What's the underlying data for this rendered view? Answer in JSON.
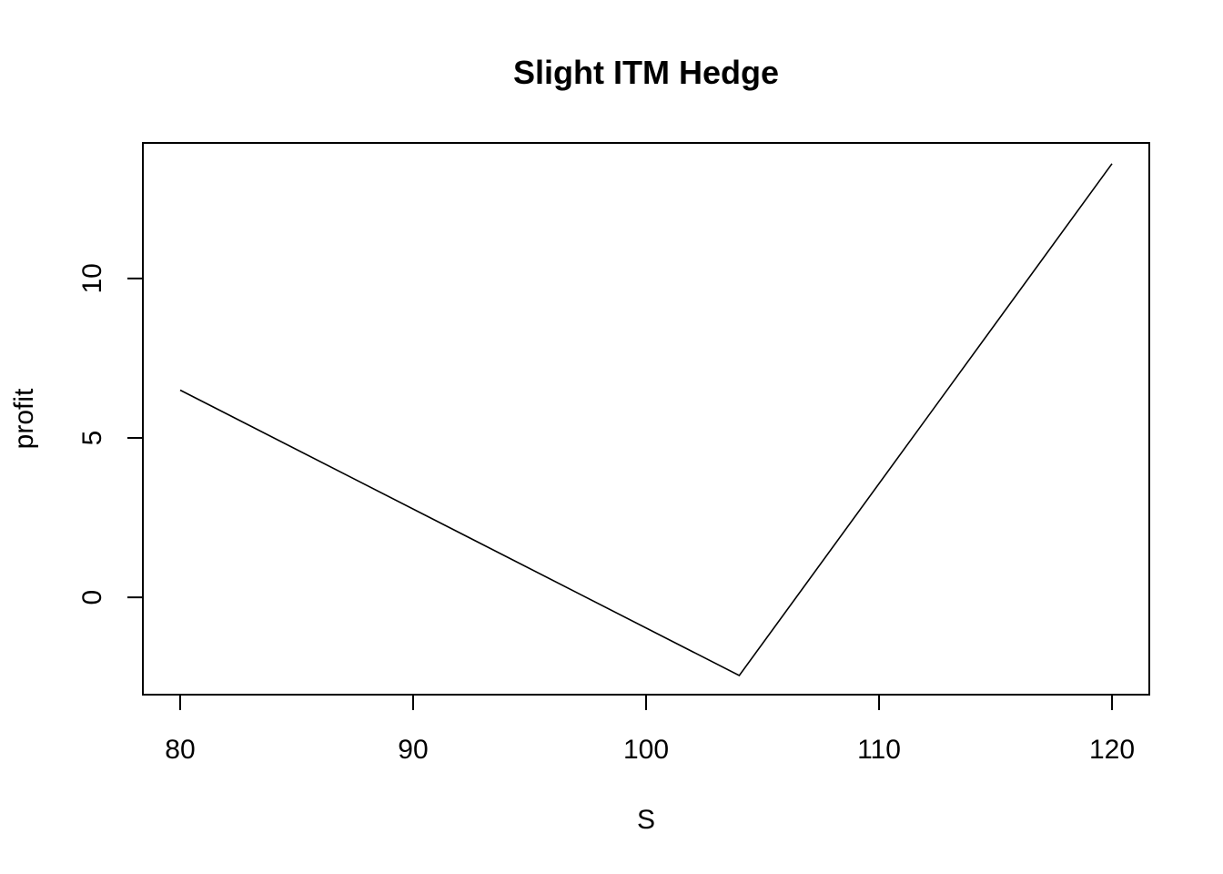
{
  "chart_data": {
    "type": "line",
    "title": "Slight ITM Hedge",
    "xlabel": "S",
    "ylabel": "profit",
    "xlim": [
      78.4,
      121.6
    ],
    "ylim": [
      -3.05,
      14.25
    ],
    "x_ticks": [
      80,
      90,
      100,
      110,
      120
    ],
    "y_ticks": [
      0,
      5,
      10
    ],
    "x_tick_labels": [
      "80",
      "90",
      "100",
      "110",
      "120"
    ],
    "y_tick_labels": [
      "0",
      "5",
      "10"
    ],
    "grid": false,
    "legend": "none",
    "line_color": "#000000",
    "series": [
      {
        "x": [
          80,
          104,
          120
        ],
        "y": [
          6.5,
          -2.45,
          13.6
        ]
      }
    ]
  }
}
